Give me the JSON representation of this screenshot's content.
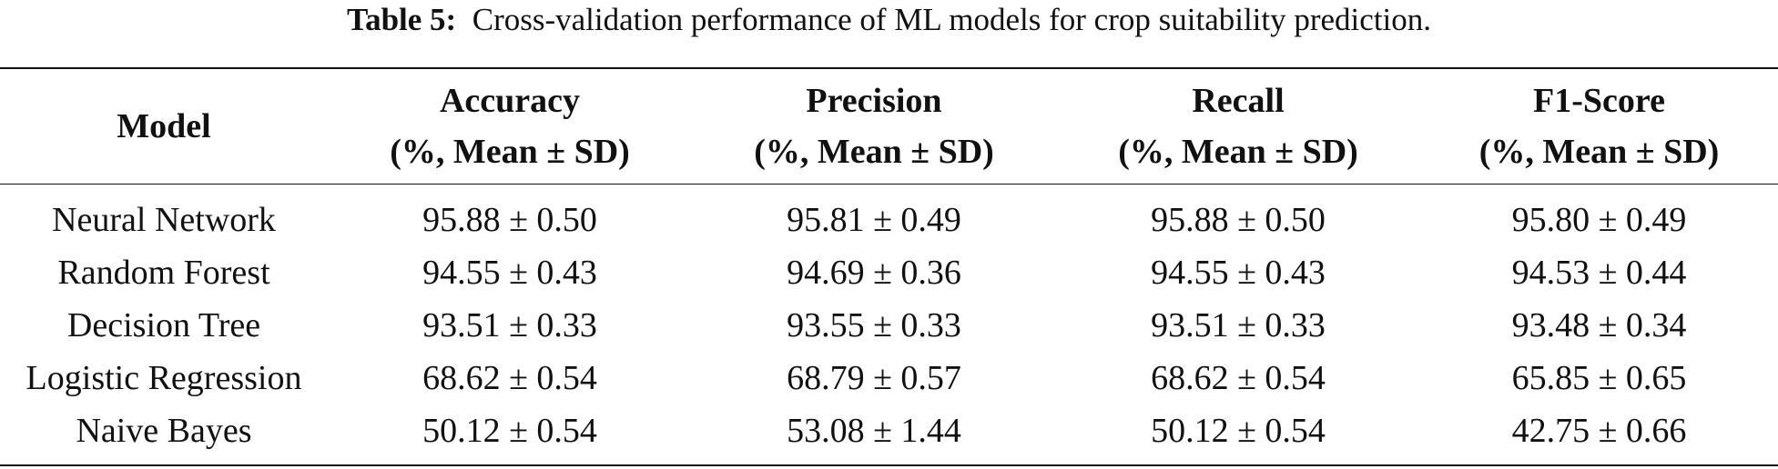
{
  "caption": {
    "label": "Table 5:",
    "text": "Cross-validation performance of ML models for crop suitability prediction."
  },
  "table": {
    "headers": [
      {
        "line1": "Model",
        "line2": ""
      },
      {
        "line1": "Accuracy",
        "line2": "(%, Mean ± SD)"
      },
      {
        "line1": "Precision",
        "line2": "(%, Mean ± SD)"
      },
      {
        "line1": "Recall",
        "line2": "(%, Mean ± SD)"
      },
      {
        "line1": "F1-Score",
        "line2": "(%, Mean ± SD)"
      }
    ],
    "rows": [
      [
        "Neural Network",
        "95.88 ± 0.50",
        "95.81 ± 0.49",
        "95.88 ± 0.50",
        "95.80 ± 0.49"
      ],
      [
        "Random Forest",
        "94.55 ± 0.43",
        "94.69 ± 0.36",
        "94.55 ± 0.43",
        "94.53 ± 0.44"
      ],
      [
        "Decision Tree",
        "93.51 ± 0.33",
        "93.55 ± 0.33",
        "93.51 ± 0.33",
        "93.48 ± 0.34"
      ],
      [
        "Logistic Regression",
        "68.62 ± 0.54",
        "68.79 ± 0.57",
        "68.62 ± 0.54",
        "65.85 ± 0.65"
      ],
      [
        "Naive Bayes",
        "50.12 ± 0.54",
        "53.08 ± 1.44",
        "50.12 ± 0.54",
        "42.75 ± 0.66"
      ]
    ]
  }
}
